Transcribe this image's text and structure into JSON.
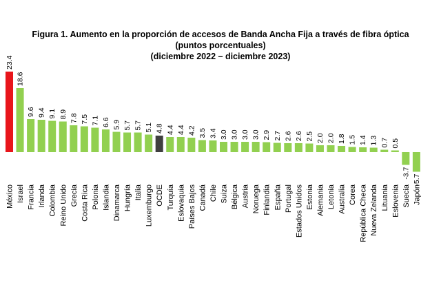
{
  "header": {
    "title": "Figura 1. Aumento en la proporción de accesos de Banda Ancha Fija a través de fibra óptica",
    "subtitle_units": "(puntos porcentuales)",
    "subtitle_period": "(diciembre 2022 – diciembre 2023)"
  },
  "chart_data": {
    "type": "bar",
    "title": "Figura 1. Aumento en la proporción de accesos de Banda Ancha Fija a través de fibra óptica",
    "ylabel": "puntos porcentuales",
    "xlabel": "",
    "grid": false,
    "ylim": [
      -5.7,
      23.4
    ],
    "categories": [
      "México",
      "Israel",
      "Francia",
      "Irlanda",
      "Colombia",
      "Reino Unido",
      "Grecia",
      "Costa Rica",
      "Polonia",
      "Islandia",
      "Dinamarca",
      "Hungría",
      "Italia",
      "Luxemburgo",
      "OCDE",
      "Turquía",
      "Eslovaquia",
      "Países Bajos",
      "Canadá",
      "Chile",
      "Suiza",
      "Bélgica",
      "Austria",
      "Noruega",
      "Finlandia",
      "España",
      "Portugal",
      "Estados Unidos",
      "Estonia",
      "Alemania",
      "Letonia",
      "Australia",
      "Corea",
      "República Checa",
      "Nueva Zelanda",
      "Lituania",
      "Eslovenia",
      "Suecia",
      "Japón"
    ],
    "values": [
      23.4,
      18.6,
      9.6,
      9.4,
      9.1,
      8.9,
      7.8,
      7.5,
      7.1,
      6.6,
      5.9,
      5.7,
      5.7,
      5.1,
      4.8,
      4.4,
      4.4,
      4.2,
      3.5,
      3.4,
      3.0,
      3.0,
      3.0,
      3.0,
      2.9,
      2.7,
      2.6,
      2.6,
      2.5,
      2.0,
      2.0,
      1.8,
      1.5,
      1.4,
      1.3,
      0.7,
      0.5,
      -3.7,
      -5.7
    ],
    "value_labels": [
      "23.4",
      "18.6",
      "9.6",
      "9.4",
      "9.1",
      "8.9",
      "7.8",
      "7.5",
      "7.1",
      "6.6",
      "5.9",
      "5.7",
      "5.7",
      "5.1",
      "4.8",
      "4.4",
      "4.4",
      "4.2",
      "3.5",
      "3.4",
      "3.0",
      "3.0",
      "3.0",
      "3.0",
      "2.9",
      "2.7",
      "2.6",
      "2.6",
      "2.5",
      "2.0",
      "2.0",
      "1.8",
      "1.5",
      "1.4",
      "1.3",
      "0.7",
      "0.5",
      "-3.7",
      "-5.7"
    ],
    "highlight": {
      "México": "#e8151b",
      "OCDE": "#3f3f3f"
    },
    "default_color": "#92d050"
  }
}
